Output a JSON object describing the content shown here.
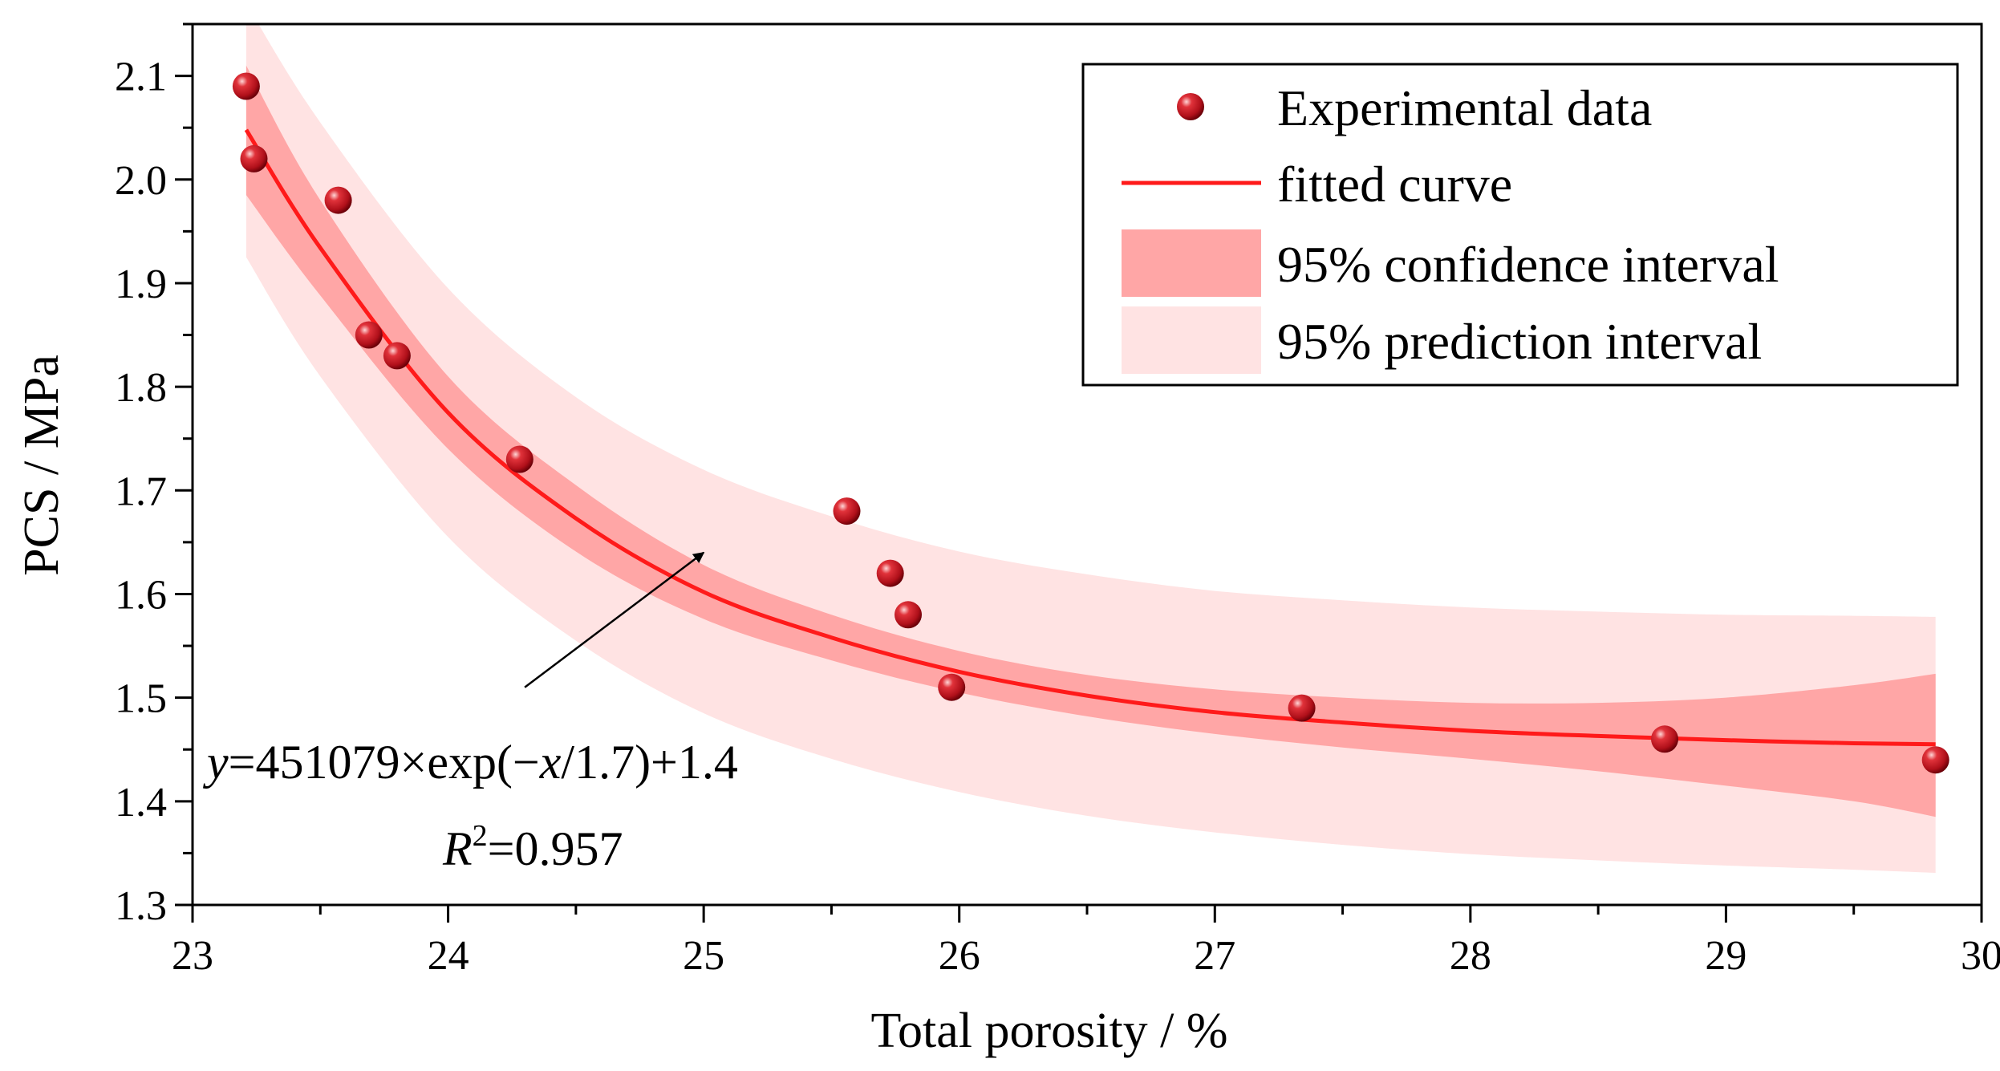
{
  "chart_data": {
    "type": "scatter",
    "xlabel": "Total porosity / %",
    "ylabel": "PCS / MPa",
    "xlim": [
      23,
      30
    ],
    "ylim": [
      1.3,
      2.15
    ],
    "x_ticks": [
      "23",
      "24",
      "25",
      "26",
      "27",
      "28",
      "29",
      "30"
    ],
    "y_ticks": [
      "1.3",
      "1.4",
      "1.5",
      "1.6",
      "1.7",
      "1.8",
      "1.9",
      "2.0",
      "2.1"
    ],
    "legend": {
      "placement": "top-right",
      "items": [
        {
          "label": "Experimental data",
          "kind": "marker"
        },
        {
          "label": "fitted curve",
          "kind": "line"
        },
        {
          "label": "95% confidence interval",
          "kind": "band-dark"
        },
        {
          "label": "95% prediction interval",
          "kind": "band-light"
        }
      ]
    },
    "series": [
      {
        "name": "Experimental data",
        "kind": "scatter",
        "points": [
          [
            23.21,
            2.09
          ],
          [
            23.24,
            2.02
          ],
          [
            23.57,
            1.98
          ],
          [
            23.69,
            1.85
          ],
          [
            23.8,
            1.83
          ],
          [
            24.28,
            1.73
          ],
          [
            25.56,
            1.68
          ],
          [
            25.73,
            1.62
          ],
          [
            25.8,
            1.58
          ],
          [
            25.97,
            1.51
          ],
          [
            27.34,
            1.49
          ],
          [
            28.76,
            1.46
          ],
          [
            29.82,
            1.44
          ]
        ]
      }
    ],
    "fit": {
      "name": "fitted curve",
      "x_range": [
        23.21,
        29.82
      ],
      "curve": [
        [
          23.21,
          2.048
        ],
        [
          23.5,
          1.934
        ],
        [
          24.0,
          1.775
        ],
        [
          24.5,
          1.673
        ],
        [
          25.0,
          1.602
        ],
        [
          25.5,
          1.558
        ],
        [
          26.0,
          1.525
        ],
        [
          26.5,
          1.502
        ],
        [
          27.0,
          1.486
        ],
        [
          27.5,
          1.476
        ],
        [
          28.0,
          1.468
        ],
        [
          28.5,
          1.463
        ],
        [
          29.0,
          1.459
        ],
        [
          29.5,
          1.456
        ],
        [
          29.82,
          1.455
        ]
      ],
      "confidence_interval": {
        "name": "95% confidence interval",
        "upper": [
          [
            23.21,
            2.11
          ],
          [
            23.5,
            1.98
          ],
          [
            24.0,
            1.81
          ],
          [
            24.5,
            1.705
          ],
          [
            25.0,
            1.628
          ],
          [
            25.5,
            1.58
          ],
          [
            26.0,
            1.545
          ],
          [
            26.5,
            1.522
          ],
          [
            27.0,
            1.508
          ],
          [
            27.5,
            1.5
          ],
          [
            28.0,
            1.495
          ],
          [
            28.5,
            1.495
          ],
          [
            29.0,
            1.5
          ],
          [
            29.5,
            1.512
          ],
          [
            29.82,
            1.523
          ]
        ],
        "lower": [
          [
            23.21,
            1.985
          ],
          [
            23.5,
            1.888
          ],
          [
            24.0,
            1.74
          ],
          [
            24.5,
            1.641
          ],
          [
            25.0,
            1.576
          ],
          [
            25.5,
            1.536
          ],
          [
            26.0,
            1.505
          ],
          [
            26.5,
            1.482
          ],
          [
            27.0,
            1.465
          ],
          [
            27.5,
            1.452
          ],
          [
            28.0,
            1.441
          ],
          [
            28.5,
            1.429
          ],
          [
            29.0,
            1.415
          ],
          [
            29.5,
            1.4
          ],
          [
            29.82,
            1.385
          ]
        ]
      },
      "prediction_interval": {
        "name": "95% prediction interval",
        "upper": [
          [
            23.21,
            2.17
          ],
          [
            23.5,
            2.055
          ],
          [
            24.0,
            1.895
          ],
          [
            24.5,
            1.79
          ],
          [
            25.0,
            1.72
          ],
          [
            25.5,
            1.675
          ],
          [
            26.0,
            1.641
          ],
          [
            26.5,
            1.619
          ],
          [
            27.0,
            1.603
          ],
          [
            27.5,
            1.594
          ],
          [
            28.0,
            1.587
          ],
          [
            28.5,
            1.583
          ],
          [
            29.0,
            1.58
          ],
          [
            29.5,
            1.579
          ],
          [
            29.82,
            1.578
          ]
        ],
        "lower": [
          [
            23.21,
            1.925
          ],
          [
            23.5,
            1.81
          ],
          [
            24.0,
            1.655
          ],
          [
            24.5,
            1.555
          ],
          [
            25.0,
            1.485
          ],
          [
            25.5,
            1.441
          ],
          [
            26.0,
            1.409
          ],
          [
            26.5,
            1.386
          ],
          [
            27.0,
            1.37
          ],
          [
            27.5,
            1.358
          ],
          [
            28.0,
            1.349
          ],
          [
            28.5,
            1.343
          ],
          [
            29.0,
            1.338
          ],
          [
            29.5,
            1.334
          ],
          [
            29.82,
            1.331
          ]
        ]
      }
    },
    "annotation": {
      "equation_prefix": "y",
      "equation_middle": "=451079×exp(−",
      "equation_var": "x",
      "equation_suffix": "/1.7)+1.4",
      "r2_symbol": "R",
      "r2_exponent": "2",
      "r2_value": "=0.957",
      "arrow_from": [
        24.3,
        1.51
      ],
      "arrow_to": [
        25.0,
        1.64
      ]
    },
    "colors": {
      "marker": "#c8141e",
      "fit_line": "#ff1a1a",
      "confidence_band": "#ffa6a6",
      "prediction_band": "#ffe3e3",
      "axis": "#000000"
    }
  }
}
